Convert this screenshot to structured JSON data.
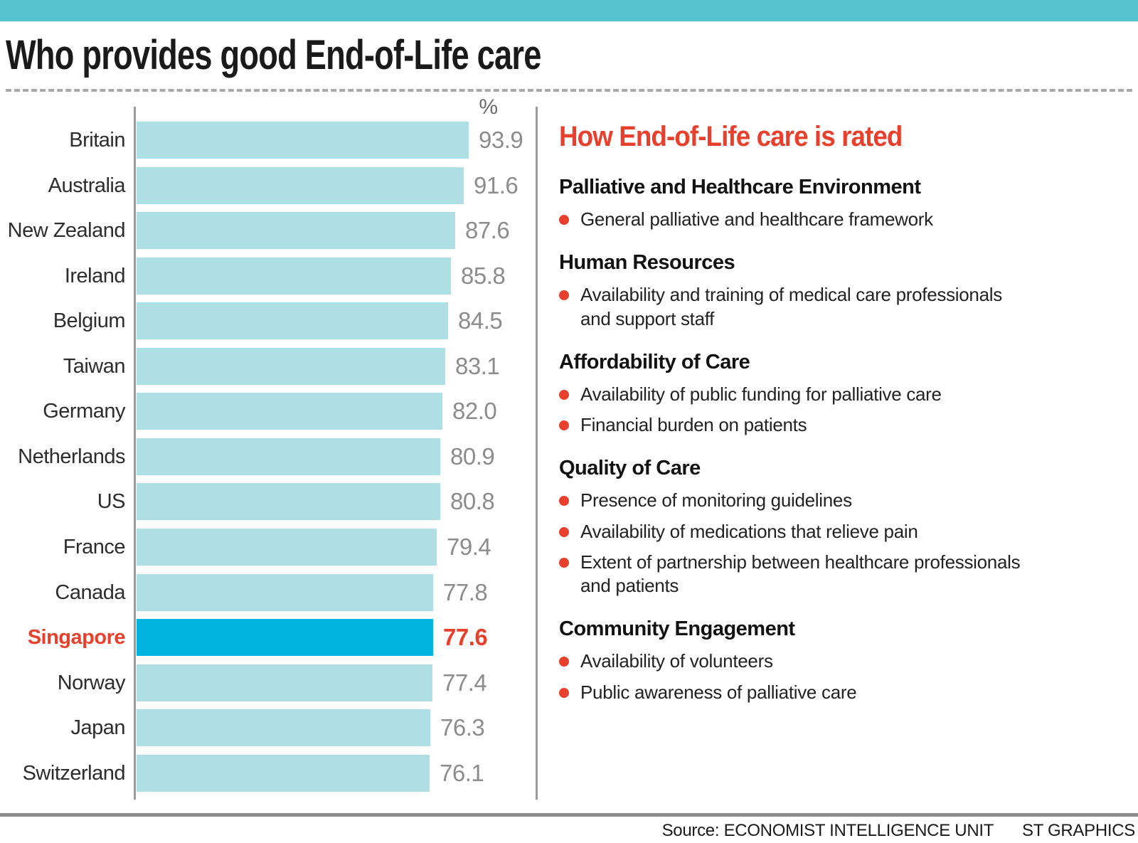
{
  "title": "Who provides good End-of-Life care",
  "chart": {
    "unit_label": "%",
    "highlight_country": "Singapore",
    "rows": [
      {
        "country": "Britain",
        "value": 93.9,
        "label": "93.9"
      },
      {
        "country": "Australia",
        "value": 91.6,
        "label": "91.6"
      },
      {
        "country": "New Zealand",
        "value": 87.6,
        "label": "87.6"
      },
      {
        "country": "Ireland",
        "value": 85.8,
        "label": "85.8"
      },
      {
        "country": "Belgium",
        "value": 84.5,
        "label": "84.5"
      },
      {
        "country": "Taiwan",
        "value": 83.1,
        "label": "83.1"
      },
      {
        "country": "Germany",
        "value": 82.0,
        "label": "82.0"
      },
      {
        "country": "Netherlands",
        "value": 80.9,
        "label": "80.9"
      },
      {
        "country": "US",
        "value": 80.8,
        "label": "80.8"
      },
      {
        "country": "France",
        "value": 79.4,
        "label": "79.4"
      },
      {
        "country": "Canada",
        "value": 77.8,
        "label": "77.8"
      },
      {
        "country": "Singapore",
        "value": 77.6,
        "label": "77.6"
      },
      {
        "country": "Norway",
        "value": 77.4,
        "label": "77.4"
      },
      {
        "country": "Japan",
        "value": 76.3,
        "label": "76.3"
      },
      {
        "country": "Switzerland",
        "value": 76.1,
        "label": "76.1"
      }
    ]
  },
  "panel": {
    "heading": "How End-of-Life care is rated",
    "sections": [
      {
        "heading": "Palliative and Healthcare Environment",
        "bullets": [
          "General palliative and healthcare framework"
        ]
      },
      {
        "heading": "Human Resources",
        "bullets": [
          "Availability and training of medical care professionals\nand support staff"
        ]
      },
      {
        "heading": "Affordability of Care",
        "bullets": [
          "Availability of public funding for palliative care",
          "Financial burden on patients"
        ]
      },
      {
        "heading": "Quality of Care",
        "bullets": [
          "Presence of monitoring guidelines",
          "Availability of medications that relieve pain",
          "Extent of partnership between healthcare professionals\nand patients"
        ]
      },
      {
        "heading": "Community Engagement",
        "bullets": [
          "Availability of volunteers",
          "Public awareness of palliative care"
        ]
      }
    ]
  },
  "footer": {
    "source": "Source: ECONOMIST INTELLIGENCE UNIT",
    "credit": "ST GRAPHICS"
  },
  "colors": {
    "top_bar": "#55c4cf",
    "bar_default": "#aedfe4",
    "bar_highlight": "#00b4df",
    "accent_red": "#e8402c",
    "value_gray": "#8c8c8c",
    "axis_gray": "#9a9a9a"
  },
  "chart_data": {
    "type": "bar",
    "orientation": "horizontal",
    "title": "Who provides good End-of-Life care",
    "unit": "%",
    "categories": [
      "Britain",
      "Australia",
      "New Zealand",
      "Ireland",
      "Belgium",
      "Taiwan",
      "Germany",
      "Netherlands",
      "US",
      "France",
      "Canada",
      "Singapore",
      "Norway",
      "Japan",
      "Switzerland"
    ],
    "values": [
      93.9,
      91.6,
      87.6,
      85.8,
      84.5,
      83.1,
      82.0,
      80.9,
      80.8,
      79.4,
      77.8,
      77.6,
      77.4,
      76.3,
      76.1
    ],
    "value_labels": [
      "93.9",
      "91.6",
      "87.6",
      "85.8",
      "84.5",
      "83.1",
      "82.0",
      "80.9",
      "80.8",
      "79.4",
      "77.8",
      "77.6",
      "77.4",
      "76.3",
      "76.1"
    ],
    "highlight_category": "Singapore",
    "zero_based_axis": false,
    "grid": false,
    "legend": false,
    "source": "ECONOMIST INTELLIGENCE UNIT",
    "credit": "ST GRAPHICS"
  }
}
